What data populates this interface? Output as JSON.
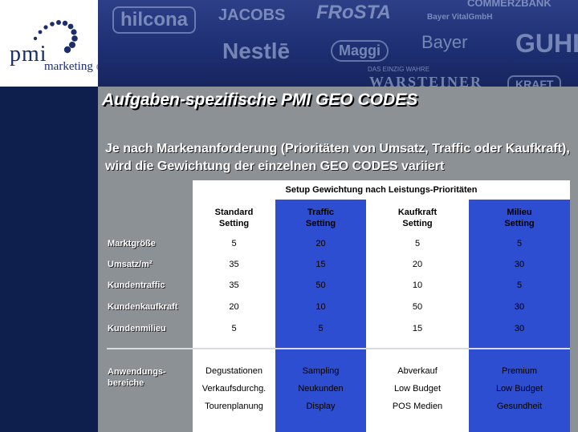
{
  "logo": {
    "name": "pmi",
    "sub_dark": "marketing",
    "sub_light": " communications"
  },
  "brands": [
    "hilcona",
    "JACOBS",
    "FRoSTA",
    "COMMERZBANK",
    "Nestlē",
    "Maggi",
    "Bayer",
    "GUHL",
    "WARSTEINER",
    "KRAFT",
    "Bayer VitalGmbH",
    "DAS EINZIG WAHRE"
  ],
  "title": "Aufgaben-spezifische PMI GEO CODES",
  "subtitle": "Je nach Markenanforderung (Prioritäten von Umsatz, Traffic oder Kaufkraft), wird die Gewichtung der einzelnen GEO CODES variiert",
  "table": {
    "header": "Setup Gewichtung nach Leistungs-Prioritäten",
    "columns": [
      {
        "line1": "Standard",
        "line2": "Setting"
      },
      {
        "line1": "Traffic",
        "line2": "Setting"
      },
      {
        "line1": "Kaufkraft",
        "line2": "Setting"
      },
      {
        "line1": "Milieu",
        "line2": "Setting"
      }
    ],
    "rows": [
      {
        "label": "Marktgröße",
        "values": [
          "5",
          "20",
          "5",
          "5"
        ]
      },
      {
        "label": "Umsatz/m²",
        "values": [
          "35",
          "15",
          "20",
          "30"
        ]
      },
      {
        "label": "Kundentraffic",
        "values": [
          "35",
          "50",
          "10",
          "5"
        ]
      },
      {
        "label": "Kundenkaufkraft",
        "values": [
          "20",
          "10",
          "50",
          "30"
        ]
      },
      {
        "label": "Kundenmilieu",
        "values": [
          "5",
          "5",
          "15",
          "30"
        ]
      }
    ],
    "usage": {
      "label_line1": "Anwendungs-",
      "label_line2": "bereiche",
      "rows": [
        [
          "Degustationen",
          "Sampling",
          "Abverkauf",
          "Premium"
        ],
        [
          "Verkaufsdurchg.",
          "Neukunden",
          "Low Budget",
          "Low Budget"
        ],
        [
          "Tourenplanung",
          "Display",
          "POS Medien",
          "Gesundheit"
        ]
      ]
    }
  }
}
